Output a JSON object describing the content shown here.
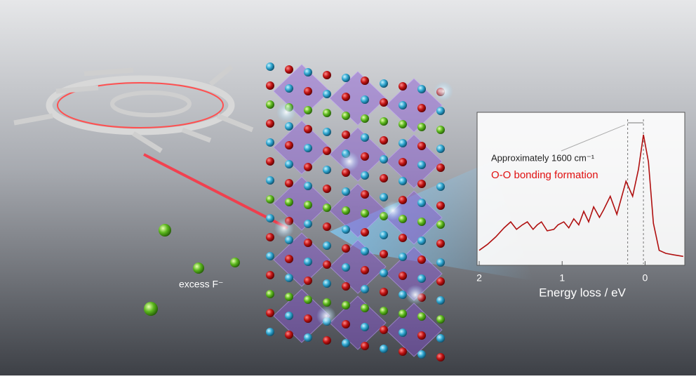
{
  "chart_data": {
    "type": "line",
    "x_label": "Energy loss  / eV",
    "annotation": "Approximately 1600 cm⁻¹",
    "highlight": "O-O bonding formation",
    "xlim": [
      2.0,
      -0.47
    ],
    "xticks": [
      2,
      1,
      0
    ],
    "ylim": [
      0,
      1
    ],
    "reference_lines": [
      0.21,
      0.02
    ],
    "series": [
      {
        "color": "#b01010",
        "x": [
          2.0,
          1.9,
          1.8,
          1.7,
          1.62,
          1.55,
          1.48,
          1.42,
          1.35,
          1.3,
          1.25,
          1.18,
          1.1,
          1.05,
          0.98,
          0.92,
          0.86,
          0.8,
          0.74,
          0.68,
          0.62,
          0.55,
          0.5,
          0.42,
          0.34,
          0.23,
          0.15,
          0.08,
          0.02,
          -0.04,
          -0.1,
          -0.17,
          -0.25,
          -0.35,
          -0.46
        ],
        "values": [
          0.09,
          0.13,
          0.18,
          0.24,
          0.28,
          0.23,
          0.26,
          0.28,
          0.23,
          0.26,
          0.28,
          0.22,
          0.23,
          0.26,
          0.28,
          0.24,
          0.3,
          0.26,
          0.35,
          0.28,
          0.38,
          0.31,
          0.36,
          0.45,
          0.33,
          0.55,
          0.45,
          0.63,
          0.86,
          0.68,
          0.27,
          0.09,
          0.07,
          0.06,
          0.05
        ]
      }
    ]
  },
  "labels": {
    "ion": "excess F⁻"
  }
}
